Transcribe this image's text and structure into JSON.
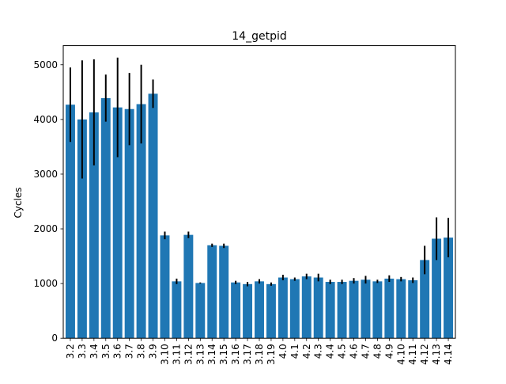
{
  "chart_data": {
    "type": "bar",
    "title": "14_getpid",
    "xlabel": "",
    "ylabel": "Cycles",
    "ylim": [
      0,
      5350
    ],
    "yticks": [
      0,
      1000,
      2000,
      3000,
      4000,
      5000
    ],
    "grid": false,
    "bar_color": "#1f77b4",
    "error_color": "#000000",
    "categories": [
      "3.2",
      "3.3",
      "3.4",
      "3.5",
      "3.6",
      "3.7",
      "3.8",
      "3.9",
      "3.10",
      "3.11",
      "3.12",
      "3.13",
      "3.14",
      "3.15",
      "3.16",
      "3.17",
      "3.18",
      "3.19",
      "4.0",
      "4.1",
      "4.2",
      "4.3",
      "4.4",
      "4.5",
      "4.6",
      "4.7",
      "4.8",
      "4.9",
      "4.10",
      "4.11",
      "4.12",
      "4.13",
      "4.14"
    ],
    "values": [
      4270,
      4000,
      4130,
      4390,
      4220,
      4190,
      4280,
      4470,
      1880,
      1040,
      1890,
      1010,
      1700,
      1690,
      1020,
      990,
      1040,
      990,
      1110,
      1080,
      1130,
      1110,
      1030,
      1030,
      1050,
      1070,
      1040,
      1090,
      1080,
      1060,
      1430,
      1820,
      1840
    ],
    "errors": [
      680,
      1080,
      970,
      430,
      910,
      660,
      720,
      260,
      70,
      50,
      60,
      10,
      30,
      40,
      30,
      40,
      40,
      30,
      50,
      30,
      50,
      70,
      40,
      40,
      50,
      70,
      30,
      60,
      40,
      50,
      260,
      390,
      360
    ]
  }
}
